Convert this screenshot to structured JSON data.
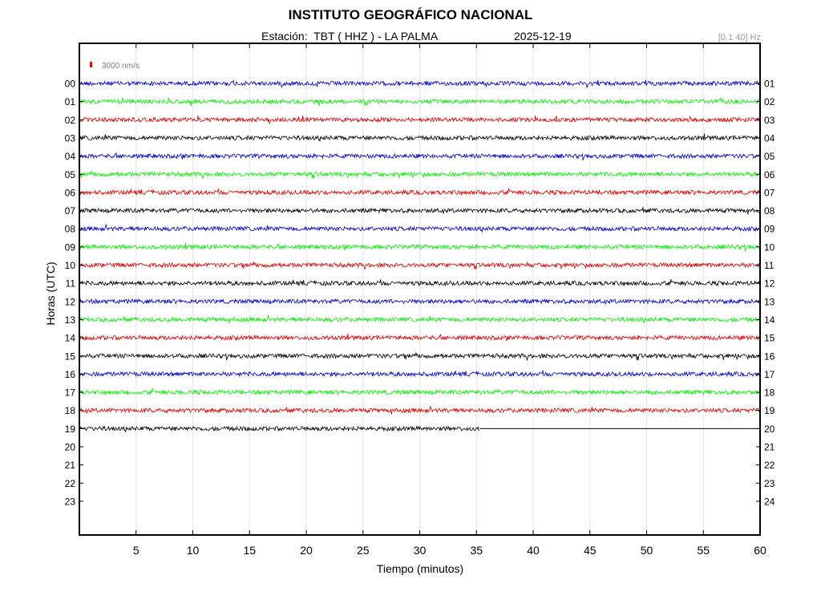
{
  "header": {
    "title": "INSTITUTO GEOGRÁFICO NACIONAL",
    "station_label": "Estación:  TBT ( HHZ ) - LA PALMA",
    "date": "2025-12-19",
    "filter": "[0.1 40] Hz"
  },
  "chart_data": {
    "type": "line",
    "title": "INSTITUTO GEOGRÁFICO NACIONAL",
    "xlabel": "Tiempo (minutos)",
    "ylabel": "Horas (UTC)",
    "xlim": [
      0,
      60
    ],
    "x_ticks": [
      "5",
      "10",
      "15",
      "20",
      "25",
      "30",
      "35",
      "40",
      "45",
      "50",
      "55",
      "60"
    ],
    "x_tick_values": [
      5,
      10,
      15,
      20,
      25,
      30,
      35,
      40,
      45,
      50,
      55,
      60
    ],
    "y_ticks_left": [
      "00",
      "01",
      "02",
      "03",
      "04",
      "05",
      "06",
      "07",
      "08",
      "09",
      "10",
      "11",
      "12",
      "13",
      "14",
      "15",
      "16",
      "17",
      "18",
      "19",
      "20",
      "21",
      "22",
      "23"
    ],
    "y_ticks_right": [
      "01",
      "02",
      "03",
      "04",
      "05",
      "06",
      "07",
      "08",
      "09",
      "10",
      "11",
      "12",
      "13",
      "14",
      "15",
      "16",
      "17",
      "18",
      "19",
      "20",
      "21",
      "22",
      "23",
      "24"
    ],
    "scale_label": "3000 nm/s",
    "scale_color": "#ff0000",
    "grid": true,
    "trace_colors": [
      "#0000cc",
      "#00ee00",
      "#dd0000",
      "#000000"
    ],
    "traces": [
      {
        "hour": "00",
        "end_minute": 60,
        "color": "#0000cc"
      },
      {
        "hour": "01",
        "end_minute": 60,
        "color": "#00ee00"
      },
      {
        "hour": "02",
        "end_minute": 60,
        "color": "#dd0000"
      },
      {
        "hour": "03",
        "end_minute": 60,
        "color": "#000000"
      },
      {
        "hour": "04",
        "end_minute": 60,
        "color": "#0000cc"
      },
      {
        "hour": "05",
        "end_minute": 60,
        "color": "#00ee00"
      },
      {
        "hour": "06",
        "end_minute": 60,
        "color": "#dd0000"
      },
      {
        "hour": "07",
        "end_minute": 60,
        "color": "#000000"
      },
      {
        "hour": "08",
        "end_minute": 60,
        "color": "#0000cc"
      },
      {
        "hour": "09",
        "end_minute": 60,
        "color": "#00ee00"
      },
      {
        "hour": "10",
        "end_minute": 60,
        "color": "#dd0000"
      },
      {
        "hour": "11",
        "end_minute": 60,
        "color": "#000000"
      },
      {
        "hour": "12",
        "end_minute": 60,
        "color": "#0000cc"
      },
      {
        "hour": "13",
        "end_minute": 60,
        "color": "#00ee00"
      },
      {
        "hour": "14",
        "end_minute": 60,
        "color": "#dd0000"
      },
      {
        "hour": "15",
        "end_minute": 60,
        "color": "#000000"
      },
      {
        "hour": "16",
        "end_minute": 60,
        "color": "#0000cc"
      },
      {
        "hour": "17",
        "end_minute": 60,
        "color": "#00ee00"
      },
      {
        "hour": "18",
        "end_minute": 60,
        "color": "#dd0000"
      },
      {
        "hour": "19",
        "end_minute": 35.3,
        "color": "#000000",
        "flat_after_end": true
      }
    ]
  }
}
